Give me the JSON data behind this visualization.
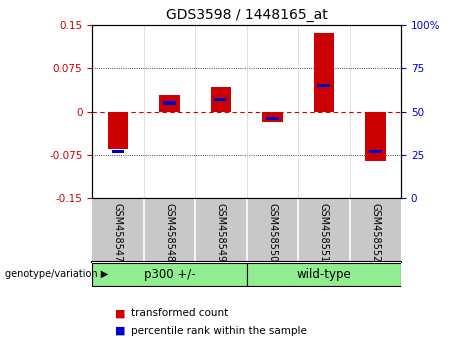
{
  "title": "GDS3598 / 1448165_at",
  "samples": [
    "GSM458547",
    "GSM458548",
    "GSM458549",
    "GSM458550",
    "GSM458551",
    "GSM458552"
  ],
  "transformed_count": [
    -0.065,
    0.028,
    0.042,
    -0.018,
    0.135,
    -0.085
  ],
  "percentile_rank": [
    27,
    55,
    57,
    46,
    65,
    27
  ],
  "ylim_left": [
    -0.15,
    0.15
  ],
  "ylim_right": [
    0,
    100
  ],
  "yticks_left": [
    -0.15,
    -0.075,
    0,
    0.075,
    0.15
  ],
  "yticks_left_labels": [
    "-0.15",
    "-0.075",
    "0",
    "0.075",
    "0.15"
  ],
  "yticks_right": [
    0,
    25,
    50,
    75,
    100
  ],
  "yticks_right_labels": [
    "0",
    "25",
    "50",
    "75",
    "100%"
  ],
  "bar_color_red": "#CC0000",
  "bar_color_blue": "#0000CC",
  "background_color": "#FFFFFF",
  "zero_line_color": "#CC0000",
  "group1_label": "p300 +/-",
  "group2_label": "wild-type",
  "group_color": "#90EE90",
  "sample_box_color": "#C8C8C8",
  "legend_items": [
    "transformed count",
    "percentile rank within the sample"
  ],
  "genotype_label": "genotype/variation ▶",
  "bar_width": 0.4,
  "blue_bar_width": 0.25,
  "blue_bar_height": 0.006
}
